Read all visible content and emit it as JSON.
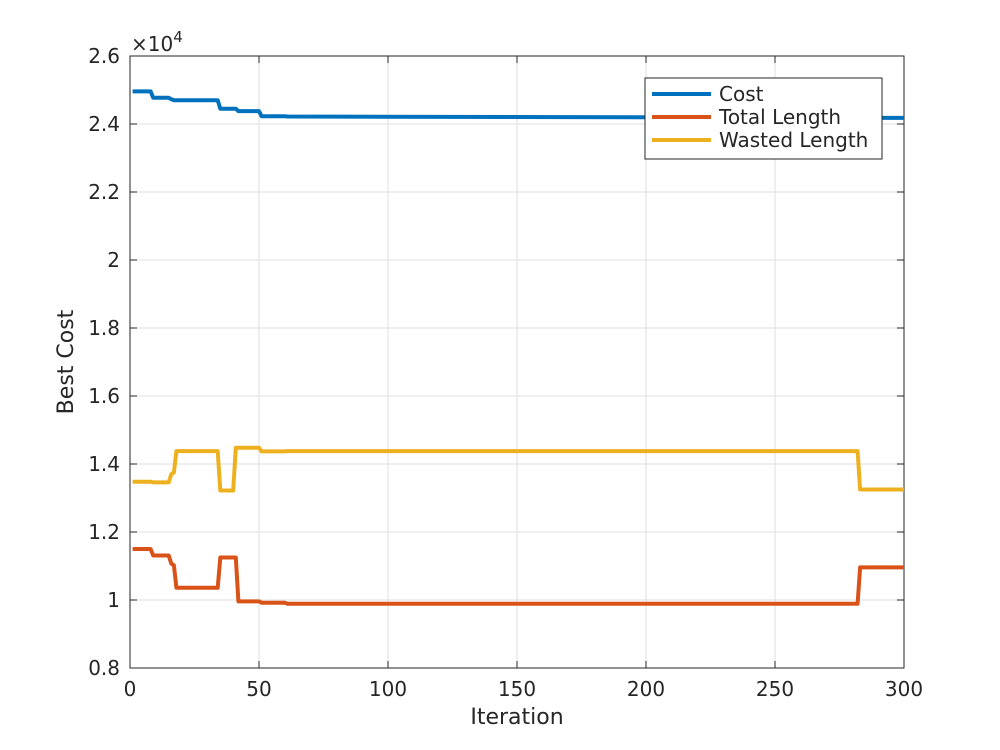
{
  "chart_data": {
    "type": "line",
    "xlabel": "Iteration",
    "ylabel": "Best Cost",
    "xlim": [
      0,
      300
    ],
    "ylim": [
      8000,
      26000
    ],
    "xticks": [
      0,
      50,
      100,
      150,
      200,
      250,
      300
    ],
    "xtick_labels": [
      "0",
      "50",
      "100",
      "150",
      "200",
      "250",
      "300"
    ],
    "yticks": [
      8000,
      10000,
      12000,
      14000,
      16000,
      18000,
      20000,
      22000,
      24000,
      26000
    ],
    "ytick_labels": [
      "0.8",
      "1",
      "1.2",
      "1.4",
      "1.6",
      "1.8",
      "2",
      "2.2",
      "2.4",
      "2.6"
    ],
    "y_exponent_base": "×10",
    "y_exponent_power": "4",
    "grid": true,
    "legend_position": "top-right",
    "series": [
      {
        "name": "Cost",
        "color": "#0072BD",
        "points": [
          [
            1,
            24960
          ],
          [
            8,
            24960
          ],
          [
            9,
            24770
          ],
          [
            15,
            24770
          ],
          [
            16,
            24730
          ],
          [
            17,
            24700
          ],
          [
            34,
            24700
          ],
          [
            35,
            24450
          ],
          [
            41,
            24450
          ],
          [
            42,
            24380
          ],
          [
            50,
            24380
          ],
          [
            51,
            24230
          ],
          [
            60,
            24230
          ],
          [
            61,
            24220
          ],
          [
            300,
            24180
          ]
        ]
      },
      {
        "name": "Total Length",
        "color": "#D95319",
        "points": [
          [
            1,
            11500
          ],
          [
            8,
            11500
          ],
          [
            9,
            11310
          ],
          [
            15,
            11310
          ],
          [
            16,
            11070
          ],
          [
            17,
            11020
          ],
          [
            18,
            10360
          ],
          [
            34,
            10360
          ],
          [
            35,
            11250
          ],
          [
            41,
            11250
          ],
          [
            42,
            9960
          ],
          [
            50,
            9960
          ],
          [
            51,
            9920
          ],
          [
            60,
            9920
          ],
          [
            61,
            9890
          ],
          [
            282,
            9890
          ],
          [
            283,
            10960
          ],
          [
            300,
            10960
          ]
        ]
      },
      {
        "name": "Wasted Length",
        "color": "#EDB120",
        "points": [
          [
            1,
            13480
          ],
          [
            8,
            13480
          ],
          [
            9,
            13460
          ],
          [
            15,
            13460
          ],
          [
            16,
            13700
          ],
          [
            17,
            13750
          ],
          [
            18,
            14380
          ],
          [
            34,
            14380
          ],
          [
            35,
            13220
          ],
          [
            40,
            13220
          ],
          [
            41,
            14480
          ],
          [
            50,
            14480
          ],
          [
            51,
            14370
          ],
          [
            60,
            14370
          ],
          [
            61,
            14380
          ],
          [
            282,
            14380
          ],
          [
            283,
            13250
          ],
          [
            300,
            13250
          ]
        ]
      }
    ]
  }
}
